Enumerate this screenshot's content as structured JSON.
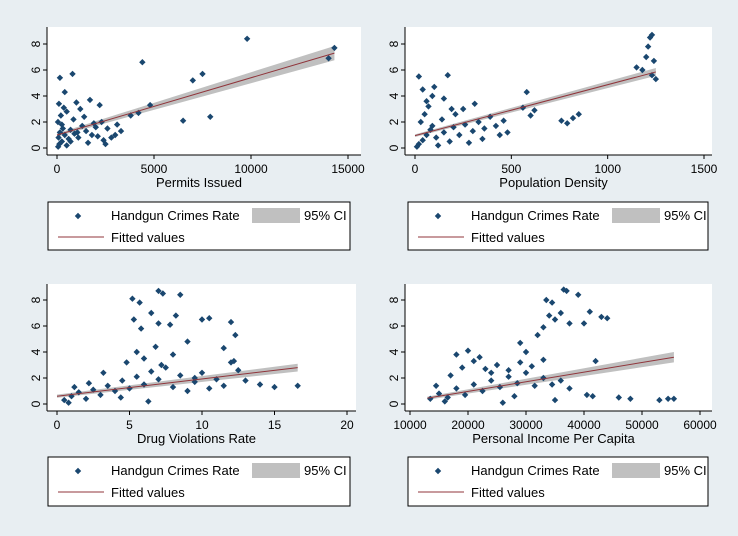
{
  "colors": {
    "background": "#e8eef2",
    "plot_background": "#ffffff",
    "marker": "#1a476f",
    "fit_line": "#90353b",
    "ci_band": "#c0c0c0",
    "axis": "#000000"
  },
  "chart_data": [
    {
      "type": "scatter",
      "title": "",
      "xlabel": "Permits Issued",
      "ylabel": "",
      "xlim": [
        0,
        15000
      ],
      "ylim": [
        0,
        9
      ],
      "xticks": [
        0,
        5000,
        10000,
        15000
      ],
      "xtick_labels": [
        "0",
        "5000",
        "10000",
        "15000"
      ],
      "yticks": [
        0,
        2,
        4,
        6,
        8
      ],
      "ytick_labels": [
        "0",
        "2",
        "4",
        "6",
        "8"
      ],
      "grid": false,
      "legend_position": "bottom",
      "legend": [
        "Handgun Crimes Rate",
        "95% CI",
        "Fitted values"
      ],
      "fit": {
        "x": [
          0,
          14300
        ],
        "y": [
          1.0,
          7.3
        ],
        "ci_halfwidth": [
          0.12,
          0.55
        ]
      },
      "series": [
        {
          "name": "Handgun Crimes Rate",
          "points": [
            [
              120,
              0.3
            ],
            [
              250,
              0.5
            ],
            [
              80,
              0.8
            ],
            [
              400,
              1.0
            ],
            [
              150,
              1.2
            ],
            [
              600,
              0.7
            ],
            [
              300,
              1.5
            ],
            [
              50,
              2.0
            ],
            [
              200,
              2.5
            ],
            [
              350,
              3.1
            ],
            [
              100,
              3.4
            ],
            [
              700,
              1.4
            ],
            [
              900,
              1.1
            ],
            [
              1100,
              0.8
            ],
            [
              1300,
              1.7
            ],
            [
              1500,
              1.3
            ],
            [
              1800,
              1.0
            ],
            [
              2000,
              1.6
            ],
            [
              2300,
              2.0
            ],
            [
              2600,
              1.5
            ],
            [
              3000,
              1.0
            ],
            [
              3300,
              1.3
            ],
            [
              850,
              2.2
            ],
            [
              1000,
              3.5
            ],
            [
              1700,
              3.7
            ],
            [
              2200,
              3.3
            ],
            [
              1200,
              3.0
            ],
            [
              150,
              5.4
            ],
            [
              800,
              5.7
            ],
            [
              400,
              4.3
            ],
            [
              4400,
              6.6
            ],
            [
              4800,
              3.3
            ],
            [
              3800,
              2.5
            ],
            [
              6500,
              2.1
            ],
            [
              7000,
              5.2
            ],
            [
              7500,
              5.7
            ],
            [
              7900,
              2.4
            ],
            [
              9800,
              8.4
            ],
            [
              14000,
              6.9
            ],
            [
              14300,
              7.7
            ],
            [
              60,
              0.1
            ],
            [
              500,
              0.2
            ],
            [
              1600,
              0.4
            ],
            [
              2500,
              0.3
            ],
            [
              2800,
              0.8
            ],
            [
              2100,
              0.9
            ],
            [
              1900,
              1.9
            ],
            [
              1400,
              2.4
            ],
            [
              500,
              2.8
            ],
            [
              250,
              1.8
            ],
            [
              700,
              0.5
            ],
            [
              1050,
              1.2
            ],
            [
              2400,
              0.6
            ],
            [
              3100,
              1.8
            ],
            [
              4200,
              2.7
            ]
          ]
        }
      ]
    },
    {
      "type": "scatter",
      "title": "",
      "xlabel": "Population Density",
      "ylabel": "",
      "xlim": [
        0,
        1500
      ],
      "ylim": [
        0,
        9
      ],
      "xticks": [
        0,
        500,
        1000,
        1500
      ],
      "xtick_labels": [
        "0",
        "500",
        "1000",
        "1500"
      ],
      "yticks": [
        0,
        2,
        4,
        6,
        8
      ],
      "ytick_labels": [
        "0",
        "2",
        "4",
        "6",
        "8"
      ],
      "grid": false,
      "legend_position": "bottom",
      "legend": [
        "Handgun Crimes Rate",
        "95% CI",
        "Fitted values"
      ],
      "fit": {
        "x": [
          0,
          1250
        ],
        "y": [
          0.95,
          5.85
        ],
        "ci_halfwidth": [
          0.1,
          0.3
        ]
      },
      "series": [
        {
          "name": "Handgun Crimes Rate",
          "points": [
            [
              20,
              0.3
            ],
            [
              40,
              0.6
            ],
            [
              60,
              1.0
            ],
            [
              80,
              1.4
            ],
            [
              30,
              2.0
            ],
            [
              50,
              2.6
            ],
            [
              70,
              3.2
            ],
            [
              90,
              4.0
            ],
            [
              40,
              4.5
            ],
            [
              20,
              5.5
            ],
            [
              110,
              0.8
            ],
            [
              150,
              1.2
            ],
            [
              180,
              0.5
            ],
            [
              200,
              1.6
            ],
            [
              230,
              1.0
            ],
            [
              260,
              1.8
            ],
            [
              300,
              1.3
            ],
            [
              330,
              2.0
            ],
            [
              360,
              1.5
            ],
            [
              390,
              2.4
            ],
            [
              420,
              1.7
            ],
            [
              460,
              2.1
            ],
            [
              170,
              5.6
            ],
            [
              250,
              3.0
            ],
            [
              310,
              3.4
            ],
            [
              150,
              3.8
            ],
            [
              100,
              4.7
            ],
            [
              60,
              3.6
            ],
            [
              560,
              3.1
            ],
            [
              580,
              4.3
            ],
            [
              600,
              2.5
            ],
            [
              620,
              2.9
            ],
            [
              760,
              2.1
            ],
            [
              790,
              1.9
            ],
            [
              820,
              2.3
            ],
            [
              850,
              2.6
            ],
            [
              1150,
              6.2
            ],
            [
              1180,
              6.0
            ],
            [
              1200,
              7.0
            ],
            [
              1220,
              8.5
            ],
            [
              1230,
              8.7
            ],
            [
              1210,
              7.8
            ],
            [
              1240,
              6.7
            ],
            [
              1250,
              5.3
            ],
            [
              1230,
              5.6
            ],
            [
              10,
              0.1
            ],
            [
              120,
              0.2
            ],
            [
              280,
              0.4
            ],
            [
              350,
              0.7
            ],
            [
              440,
              1.0
            ],
            [
              210,
              2.6
            ],
            [
              140,
              2.2
            ],
            [
              90,
              1.7
            ],
            [
              190,
              3.0
            ],
            [
              480,
              1.2
            ]
          ]
        }
      ]
    },
    {
      "type": "scatter",
      "title": "",
      "xlabel": "Drug Violations Rate",
      "ylabel": "",
      "xlim": [
        0,
        20
      ],
      "ylim": [
        0,
        9
      ],
      "xticks": [
        0,
        5,
        10,
        15,
        20
      ],
      "xtick_labels": [
        "0",
        "5",
        "10",
        "15",
        "20"
      ],
      "yticks": [
        0,
        2,
        4,
        6,
        8
      ],
      "ytick_labels": [
        "0",
        "2",
        "4",
        "6",
        "8"
      ],
      "grid": false,
      "legend_position": "bottom",
      "legend": [
        "Handgun Crimes Rate",
        "95% CI",
        "Fitted values"
      ],
      "fit": {
        "x": [
          0,
          16.6
        ],
        "y": [
          0.6,
          2.8
        ],
        "ci_halfwidth": [
          0.12,
          0.3
        ]
      },
      "series": [
        {
          "name": "Handgun Crimes Rate",
          "points": [
            [
              0.5,
              0.3
            ],
            [
              1.0,
              0.6
            ],
            [
              1.5,
              0.9
            ],
            [
              2.0,
              0.4
            ],
            [
              2.5,
              1.1
            ],
            [
              3.0,
              0.7
            ],
            [
              3.5,
              1.4
            ],
            [
              4.0,
              1.0
            ],
            [
              4.5,
              1.8
            ],
            [
              5.0,
              1.2
            ],
            [
              5.5,
              2.1
            ],
            [
              6.0,
              1.5
            ],
            [
              6.5,
              2.5
            ],
            [
              7.0,
              1.9
            ],
            [
              7.5,
              2.8
            ],
            [
              8.0,
              1.3
            ],
            [
              8.5,
              2.2
            ],
            [
              9.0,
              1.0
            ],
            [
              9.5,
              1.7
            ],
            [
              10.0,
              2.4
            ],
            [
              10.5,
              1.2
            ],
            [
              11.0,
              1.9
            ],
            [
              11.5,
              1.4
            ],
            [
              12.0,
              3.2
            ],
            [
              12.5,
              2.6
            ],
            [
              13.0,
              1.8
            ],
            [
              14.0,
              1.5
            ],
            [
              15.0,
              1.3
            ],
            [
              16.6,
              1.4
            ],
            [
              4.8,
              3.2
            ],
            [
              5.5,
              4.0
            ],
            [
              6.0,
              3.5
            ],
            [
              6.8,
              4.4
            ],
            [
              7.2,
              3.0
            ],
            [
              8.0,
              3.8
            ],
            [
              9.0,
              4.8
            ],
            [
              10.0,
              6.5
            ],
            [
              10.5,
              6.6
            ],
            [
              12.0,
              6.3
            ],
            [
              12.3,
              5.3
            ],
            [
              11.5,
              4.3
            ],
            [
              12.2,
              3.3
            ],
            [
              8.2,
              6.8
            ],
            [
              7.0,
              6.2
            ],
            [
              5.8,
              5.8
            ],
            [
              5.2,
              8.1
            ],
            [
              5.7,
              7.8
            ],
            [
              6.5,
              7.0
            ],
            [
              7.0,
              8.7
            ],
            [
              7.3,
              8.5
            ],
            [
              7.8,
              6.1
            ],
            [
              8.5,
              8.4
            ],
            [
              5.3,
              6.5
            ],
            [
              9.5,
              2.0
            ],
            [
              3.2,
              2.4
            ],
            [
              2.2,
              1.6
            ],
            [
              1.2,
              1.3
            ],
            [
              0.8,
              0.1
            ],
            [
              6.3,
              0.2
            ],
            [
              4.4,
              0.5
            ]
          ]
        }
      ]
    },
    {
      "type": "scatter",
      "title": "",
      "xlabel": "Personal Income Per Capita",
      "ylabel": "",
      "xlim": [
        10000,
        60000
      ],
      "ylim": [
        0,
        9
      ],
      "xticks": [
        10000,
        20000,
        30000,
        40000,
        50000,
        60000
      ],
      "xtick_labels": [
        "10000",
        "20000",
        "30000",
        "40000",
        "50000",
        "60000"
      ],
      "yticks": [
        0,
        2,
        4,
        6,
        8
      ],
      "ytick_labels": [
        "0",
        "2",
        "4",
        "6",
        "8"
      ],
      "grid": false,
      "legend_position": "bottom",
      "legend": [
        "Handgun Crimes Rate",
        "95% CI",
        "Fitted values"
      ],
      "fit": {
        "x": [
          13000,
          55500
        ],
        "y": [
          0.45,
          3.6
        ],
        "ci_halfwidth": [
          0.12,
          0.4
        ]
      },
      "series": [
        {
          "name": "Handgun Crimes Rate",
          "points": [
            [
              13500,
              0.4
            ],
            [
              15000,
              0.8
            ],
            [
              16500,
              0.5
            ],
            [
              18000,
              1.2
            ],
            [
              19500,
              0.7
            ],
            [
              21000,
              1.5
            ],
            [
              22500,
              1.0
            ],
            [
              24000,
              1.8
            ],
            [
              25500,
              1.3
            ],
            [
              27000,
              2.1
            ],
            [
              28500,
              1.6
            ],
            [
              30000,
              2.4
            ],
            [
              31500,
              1.4
            ],
            [
              33000,
              2.0
            ],
            [
              34500,
              1.5
            ],
            [
              36000,
              1.8
            ],
            [
              37500,
              1.2
            ],
            [
              17000,
              2.2
            ],
            [
              19000,
              2.8
            ],
            [
              21000,
              3.3
            ],
            [
              23000,
              2.7
            ],
            [
              25000,
              3.0
            ],
            [
              27000,
              2.6
            ],
            [
              29000,
              3.2
            ],
            [
              31000,
              2.9
            ],
            [
              33000,
              3.4
            ],
            [
              18000,
              3.8
            ],
            [
              20000,
              4.1
            ],
            [
              22000,
              3.6
            ],
            [
              30000,
              4.0
            ],
            [
              29000,
              4.7
            ],
            [
              32000,
              5.3
            ],
            [
              33000,
              5.9
            ],
            [
              34000,
              6.8
            ],
            [
              35000,
              6.5
            ],
            [
              36000,
              7.0
            ],
            [
              33500,
              8.0
            ],
            [
              34500,
              7.8
            ],
            [
              36500,
              8.8
            ],
            [
              37000,
              8.7
            ],
            [
              39000,
              8.4
            ],
            [
              37500,
              6.2
            ],
            [
              40000,
              6.2
            ],
            [
              41000,
              7.1
            ],
            [
              43000,
              6.7
            ],
            [
              44000,
              6.6
            ],
            [
              42000,
              3.3
            ],
            [
              40500,
              0.7
            ],
            [
              41500,
              0.6
            ],
            [
              46000,
              0.5
            ],
            [
              48000,
              0.4
            ],
            [
              53000,
              0.3
            ],
            [
              54500,
              0.4
            ],
            [
              55500,
              0.4
            ],
            [
              14500,
              1.4
            ],
            [
              16000,
              0.2
            ],
            [
              26000,
              0.1
            ],
            [
              35000,
              0.3
            ],
            [
              24000,
              2.4
            ],
            [
              28000,
              0.6
            ]
          ]
        }
      ]
    }
  ]
}
